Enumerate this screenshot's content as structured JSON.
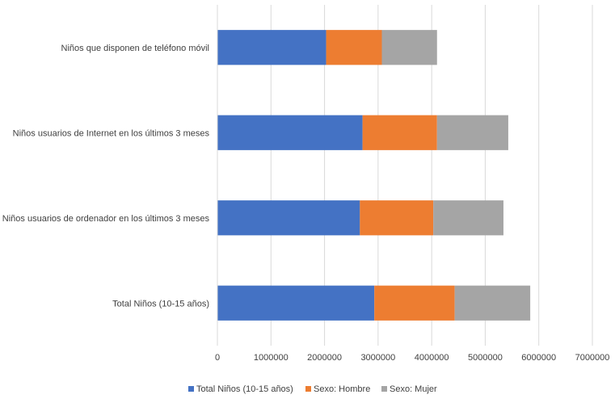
{
  "chart_data": {
    "type": "bar",
    "orientation": "horizontal",
    "stacked": true,
    "title": "",
    "xlabel": "",
    "ylabel": "",
    "categories": [
      "Niños que disponen de teléfono móvil",
      "Niños usuarios de Internet en los últimos 3 meses",
      "Niños usuarios de ordenador en los últimos 3 meses",
      "Total Niños (10-15 años)"
    ],
    "series": [
      {
        "name": "Total Niños (10-15 años)",
        "color": "#4472C4",
        "values": [
          2030000,
          2710000,
          2660000,
          2930000
        ]
      },
      {
        "name": "Sexo: Hombre",
        "color": "#ED7D31",
        "values": [
          1040000,
          1390000,
          1370000,
          1500000
        ]
      },
      {
        "name": "Sexo: Mujer",
        "color": "#A5A5A5",
        "values": [
          1030000,
          1330000,
          1310000,
          1410000
        ]
      }
    ],
    "xlim": [
      0,
      7000000
    ],
    "xticks": [
      0,
      1000000,
      2000000,
      3000000,
      4000000,
      5000000,
      6000000,
      7000000
    ],
    "xtick_labels": [
      "0",
      "1000000",
      "2000000",
      "3000000",
      "4000000",
      "5000000",
      "6000000",
      "7000000"
    ],
    "grid": "vertical",
    "legend_position": "bottom"
  }
}
